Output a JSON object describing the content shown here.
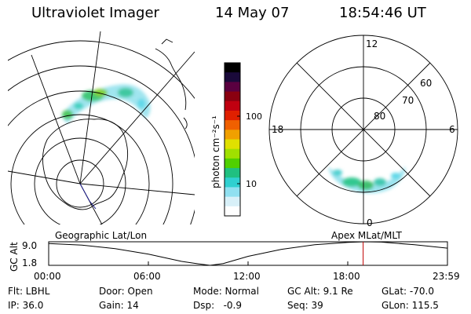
{
  "header": {
    "title": "Ultraviolet Imager",
    "date": "14 May 07",
    "time": "18:54:46 UT"
  },
  "colorbar": {
    "unit_label": "photon cm⁻²s⁻¹",
    "ticks": [
      "100",
      "10"
    ],
    "colors": [
      "#000000",
      "#1a0a3a",
      "#5a0040",
      "#8a0010",
      "#c00010",
      "#e02000",
      "#f06000",
      "#f0a000",
      "#e0e000",
      "#a0e000",
      "#50d000",
      "#20c080",
      "#30d0d0",
      "#90e0f0",
      "#d8f0f8",
      "#ffffff"
    ]
  },
  "geo_panel": {
    "label": "Geographic Lat/Lon"
  },
  "mag_panel": {
    "label": "Apex MLat/MLT",
    "mlt_labels": [
      "12",
      "18",
      "6",
      "0"
    ],
    "lat_labels": [
      "60",
      "70",
      "80"
    ]
  },
  "altitude_plot": {
    "ylabel": "GC Alt",
    "yticks": [
      "9.0",
      "1.8"
    ],
    "xticks": [
      "00:00",
      "06:00",
      "12:00",
      "18:00",
      "23:59"
    ],
    "current_time_hours": 18.91,
    "curve_hours": [
      0,
      2,
      4,
      6,
      7,
      8,
      9,
      9.7,
      10.5,
      12,
      14,
      16,
      18,
      19,
      20,
      22,
      23.98
    ],
    "curve_alt": [
      8.5,
      8.0,
      6.8,
      5.0,
      3.8,
      2.6,
      1.8,
      1.3,
      1.9,
      4.3,
      6.6,
      8.1,
      8.9,
      9.1,
      9.0,
      8.1,
      7.0
    ],
    "ylim": [
      1.3,
      9.1
    ]
  },
  "info": {
    "filter": "Flt: LBHL",
    "door": "Door: Open",
    "mode": "Mode: Normal",
    "gc_alt": "GC Alt: 9.1 Re",
    "glat": "GLat: -70.0",
    "ip": "IP: 36.0",
    "gain": "Gain: 14",
    "dsp": "Dsp:   -0.9",
    "seq": "Seq: 39",
    "glon": "GLon: 115.5"
  }
}
